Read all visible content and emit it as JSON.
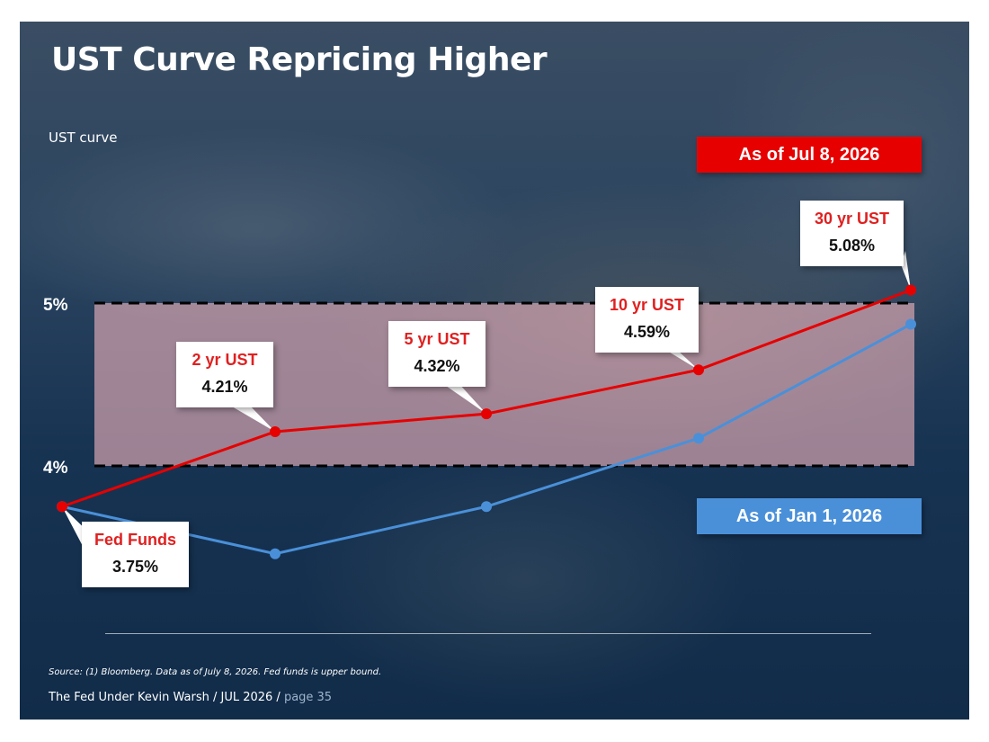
{
  "slide": {
    "title": "UST Curve Repricing Higher",
    "subtitle": "UST curve",
    "source": "Source: (1) Bloomberg. Data as of July 8, 2026. Fed funds is upper bound.",
    "footer": "The Fed Under Kevin Warsh / JUL 2026 / ",
    "page": "page 35"
  },
  "colors": {
    "current_series": "#e60000",
    "prior_series": "#4a90d9",
    "band_fill": "#f5b8c0",
    "background": "#1a3350"
  },
  "chart_data": {
    "type": "line",
    "title": "",
    "xlabel": "",
    "ylabel": "",
    "categories": [
      "Fed Funds",
      "2 yr UST",
      "5 yr UST",
      "10 yr UST",
      "30 yr UST"
    ],
    "series": [
      {
        "name": "As of Jul 8, 2026",
        "values": [
          3.75,
          4.21,
          4.32,
          4.59,
          5.08
        ]
      },
      {
        "name": "As of Jan 1, 2026",
        "values": [
          3.75,
          3.46,
          3.75,
          4.17,
          4.87
        ]
      }
    ],
    "yticks": [
      {
        "value": 4,
        "label": "4%"
      },
      {
        "value": 5,
        "label": "5%"
      }
    ],
    "band": [
      4,
      5
    ],
    "ylim": [
      3.3,
      5.3
    ],
    "grid": false,
    "callouts": [
      {
        "label": "Fed Funds",
        "value": "3.75%"
      },
      {
        "label": "2 yr UST",
        "value": "4.21%"
      },
      {
        "label": "5 yr UST",
        "value": "4.32%"
      },
      {
        "label": "10 yr UST",
        "value": "4.59%"
      },
      {
        "label": "30 yr UST",
        "value": "5.08%"
      }
    ]
  }
}
